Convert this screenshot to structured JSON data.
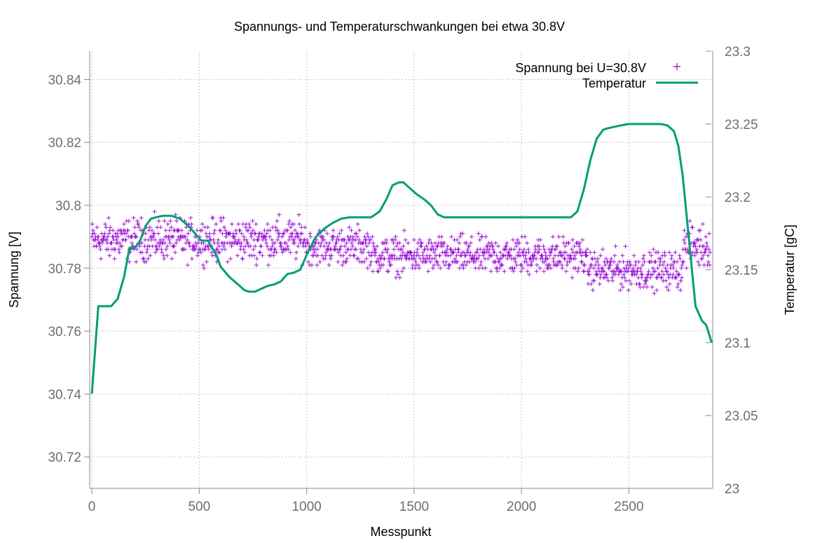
{
  "chart_data": {
    "type": "scatter",
    "title": "Spannungs- und Temperaturschwankungen bei etwa 30.8V",
    "xlabel": "Messpunkt",
    "ylabel": "Spannung [V]",
    "y2label": "Temperatur [gC]",
    "xlim": [
      -10,
      2890
    ],
    "ylim": [
      30.71,
      30.849
    ],
    "y2lim": [
      23.0,
      23.3
    ],
    "x_ticks": [
      "0",
      "500",
      "1000",
      "1500",
      "2000",
      "2500"
    ],
    "x_tick_values": [
      0,
      500,
      1000,
      1500,
      2000,
      2500
    ],
    "y_ticks": [
      "30.72",
      "30.74",
      "30.76",
      "30.78",
      "30.8",
      "30.82",
      "30.84"
    ],
    "y_tick_values": [
      30.72,
      30.74,
      30.76,
      30.78,
      30.8,
      30.82,
      30.84
    ],
    "y2_ticks": [
      "23",
      "23.05",
      "23.1",
      "23.15",
      "23.2",
      "23.25",
      "23.3"
    ],
    "y2_tick_values": [
      23.0,
      23.05,
      23.1,
      23.15,
      23.2,
      23.25,
      23.3
    ],
    "grid": true,
    "legend_position": "top-right",
    "series": [
      {
        "name": "Spannung bei U=30.8V",
        "kind": "scatter",
        "axis": "left",
        "color": "#9400d3",
        "marker": "plus",
        "count": 2880,
        "bands": [
          {
            "x_start": 0,
            "x_end": 1000,
            "center": 30.789,
            "spread": 0.006
          },
          {
            "x_start": 1000,
            "x_end": 1300,
            "center": 30.787,
            "spread": 0.0055
          },
          {
            "x_start": 1300,
            "x_end": 2300,
            "center": 30.784,
            "spread": 0.0055
          },
          {
            "x_start": 2300,
            "x_end": 2750,
            "center": 30.7795,
            "spread": 0.0055
          },
          {
            "x_start": 2750,
            "x_end": 2880,
            "center": 30.787,
            "spread": 0.006
          }
        ]
      },
      {
        "name": "Temperatur",
        "kind": "line",
        "axis": "right",
        "color": "#009e73",
        "x": [
          0,
          30,
          60,
          90,
          120,
          150,
          175,
          200,
          225,
          250,
          275,
          300,
          330,
          370,
          410,
          450,
          480,
          510,
          540,
          560,
          580,
          600,
          640,
          680,
          710,
          730,
          760,
          790,
          820,
          850,
          880,
          910,
          940,
          970,
          1000,
          1040,
          1080,
          1120,
          1160,
          1200,
          1250,
          1300,
          1340,
          1370,
          1400,
          1430,
          1450,
          1480,
          1510,
          1550,
          1580,
          1610,
          1640,
          1700,
          1800,
          1900,
          2000,
          2100,
          2200,
          2230,
          2260,
          2290,
          2320,
          2350,
          2380,
          2400,
          2430,
          2460,
          2500,
          2550,
          2600,
          2650,
          2680,
          2710,
          2730,
          2750,
          2780,
          2810,
          2840,
          2860,
          2875,
          2885
        ],
        "values": [
          23.065,
          23.125,
          23.125,
          23.125,
          23.13,
          23.145,
          23.165,
          23.165,
          23.17,
          23.18,
          23.185,
          23.186,
          23.187,
          23.187,
          23.185,
          23.18,
          23.175,
          23.17,
          23.17,
          23.165,
          23.16,
          23.152,
          23.145,
          23.14,
          23.136,
          23.135,
          23.135,
          23.137,
          23.139,
          23.14,
          23.142,
          23.147,
          23.148,
          23.15,
          23.16,
          23.172,
          23.178,
          23.182,
          23.185,
          23.186,
          23.186,
          23.186,
          23.19,
          23.198,
          23.208,
          23.21,
          23.21,
          23.206,
          23.202,
          23.198,
          23.194,
          23.188,
          23.186,
          23.186,
          23.186,
          23.186,
          23.186,
          23.186,
          23.186,
          23.186,
          23.19,
          23.205,
          23.225,
          23.24,
          23.246,
          23.247,
          23.248,
          23.249,
          23.25,
          23.25,
          23.25,
          23.25,
          23.249,
          23.245,
          23.235,
          23.215,
          23.17,
          23.125,
          23.115,
          23.112,
          23.105,
          23.1
        ]
      }
    ]
  }
}
